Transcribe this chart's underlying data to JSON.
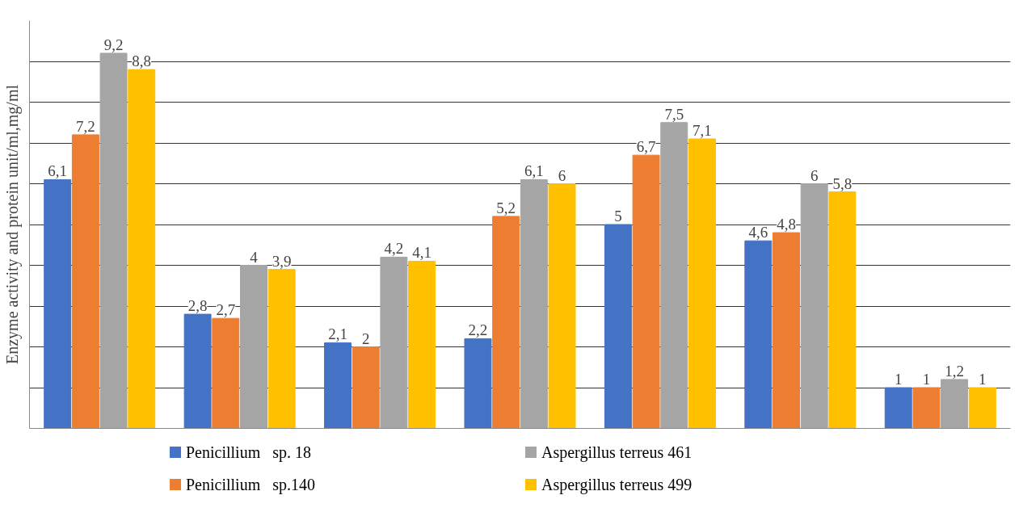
{
  "chart_data": {
    "type": "bar",
    "ylabel": "Enzyme activity and protein unit/ml,mg/ml",
    "categories": [
      null,
      null,
      null,
      null,
      null,
      null,
      null
    ],
    "series": [
      {
        "name": "Penicillium   sp. 18",
        "color": "#4472c4",
        "values": [
          6.1,
          2.8,
          2.1,
          2.2,
          5,
          4.6,
          1
        ],
        "value_labels": [
          "6,1",
          "2,8",
          "2,1",
          "2,2",
          "5",
          "4,6",
          "1"
        ]
      },
      {
        "name": "Penicillium   sp.140",
        "color": "#ed7d31",
        "values": [
          7.2,
          2.7,
          2,
          5.2,
          6.7,
          4.8,
          1
        ],
        "value_labels": [
          "7,2",
          "2,7",
          "2",
          "5,2",
          "6,7",
          "4,8",
          "1"
        ]
      },
      {
        "name": "Aspergillus terreus 461",
        "color": "#a5a5a5",
        "values": [
          9.2,
          4,
          4.2,
          6.1,
          7.5,
          6,
          1.2
        ],
        "value_labels": [
          "9,2",
          "4",
          "4,2",
          "6,1",
          "7,5",
          "6",
          "1,2"
        ]
      },
      {
        "name": "Aspergillus terreus 499",
        "color": "#ffc000",
        "values": [
          8.8,
          3.9,
          4.1,
          6,
          7.1,
          5.8,
          1
        ],
        "value_labels": [
          "8,8",
          "3,9",
          "4,1",
          "6",
          "7,1",
          "5,8",
          "1"
        ]
      }
    ],
    "ylim": [
      0,
      10
    ],
    "yticks": [
      {
        "value": 0,
        "label": null
      },
      {
        "value": 1,
        "label": null
      },
      {
        "value": 2,
        "label": null
      },
      {
        "value": 3,
        "label": null
      },
      {
        "value": 4,
        "label": null
      },
      {
        "value": 5,
        "label": null
      },
      {
        "value": 6,
        "label": null
      },
      {
        "value": 7,
        "label": null
      },
      {
        "value": 8,
        "label": null
      },
      {
        "value": 9,
        "label": null
      }
    ],
    "grid": "y",
    "legend": "bottom"
  }
}
